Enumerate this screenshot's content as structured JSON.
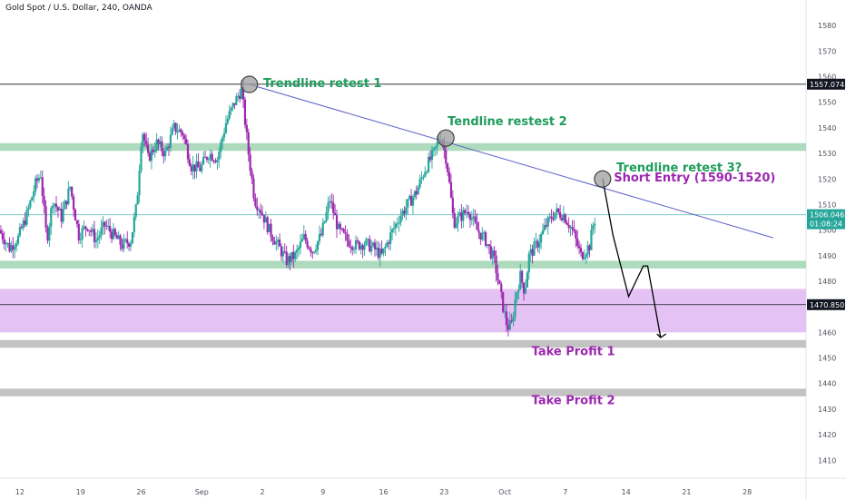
{
  "title": "Gold Spot / U.S. Dollar, 240, OANDA",
  "colors": {
    "up": "#26a69a",
    "down": "#9c27b0",
    "green_zone": "#a5d6b7",
    "purple_zone": "#e1b7f2",
    "gray_zone": "#bdbdbd",
    "trendline": "#5b5fc7",
    "green_text": "#1e9c5a",
    "purple_text": "#9c27b0",
    "price_tag": "#131722",
    "current_tag": "#26a69a"
  },
  "chart_data": {
    "type": "candlestick",
    "title": "Gold Spot / U.S. Dollar, 240, OANDA",
    "ylim": [
      1403,
      1590
    ],
    "y_ticks": [
      1410,
      1420,
      1430,
      1440,
      1450,
      1460,
      1470,
      1480,
      1490,
      1500,
      1510,
      1520,
      1530,
      1540,
      1550,
      1560,
      1570,
      1580
    ],
    "x_ticks": [
      "12",
      "19",
      "26",
      "Sep",
      "2",
      "9",
      "16",
      "23",
      "Oct",
      "7",
      "14",
      "21",
      "28"
    ],
    "x_ticks_day_index": [
      0,
      7,
      14,
      21,
      28,
      35,
      42,
      49,
      56,
      63,
      70,
      77,
      84
    ],
    "x_range_days": [
      -2.3,
      90.8
    ],
    "candle_anchors": [
      [
        -2.2,
        1500
      ],
      [
        -1,
        1493
      ],
      [
        0,
        1497
      ],
      [
        1,
        1506
      ],
      [
        2,
        1518
      ],
      [
        2.6,
        1522
      ],
      [
        3.3,
        1496
      ],
      [
        4,
        1512
      ],
      [
        5,
        1505
      ],
      [
        6,
        1517
      ],
      [
        7,
        1498
      ],
      [
        8,
        1502
      ],
      [
        9,
        1496
      ],
      [
        10,
        1502
      ],
      [
        11,
        1498
      ],
      [
        12,
        1494
      ],
      [
        13,
        1496
      ],
      [
        13.7,
        1510
      ],
      [
        14.3,
        1540
      ],
      [
        15,
        1528
      ],
      [
        16,
        1534
      ],
      [
        17,
        1530
      ],
      [
        18,
        1540
      ],
      [
        19,
        1538
      ],
      [
        20,
        1525
      ],
      [
        21,
        1524
      ],
      [
        22,
        1530
      ],
      [
        23,
        1528
      ],
      [
        24,
        1542
      ],
      [
        25,
        1550
      ],
      [
        25.8,
        1555
      ],
      [
        26.6,
        1530
      ],
      [
        27.3,
        1512
      ],
      [
        28,
        1508
      ],
      [
        29,
        1500
      ],
      [
        30,
        1494
      ],
      [
        31,
        1488
      ],
      [
        32,
        1490
      ],
      [
        33,
        1497
      ],
      [
        34,
        1492
      ],
      [
        35,
        1498
      ],
      [
        36,
        1512
      ],
      [
        37,
        1500
      ],
      [
        38,
        1496
      ],
      [
        39,
        1494
      ],
      [
        40,
        1495
      ],
      [
        41,
        1493
      ],
      [
        42,
        1490
      ],
      [
        43,
        1498
      ],
      [
        44,
        1505
      ],
      [
        45,
        1510
      ],
      [
        46,
        1515
      ],
      [
        47,
        1524
      ],
      [
        48,
        1530
      ],
      [
        48.8,
        1537
      ],
      [
        49.5,
        1527
      ],
      [
        50.3,
        1503
      ],
      [
        51,
        1505
      ],
      [
        52,
        1508
      ],
      [
        53,
        1500
      ],
      [
        54,
        1496
      ],
      [
        55,
        1488
      ],
      [
        56,
        1470
      ],
      [
        56.5,
        1462
      ],
      [
        57,
        1463
      ],
      [
        57.5,
        1475
      ],
      [
        58,
        1482
      ],
      [
        58.5,
        1476
      ],
      [
        59,
        1490
      ],
      [
        60,
        1495
      ],
      [
        61,
        1502
      ],
      [
        62,
        1507
      ],
      [
        63,
        1506
      ],
      [
        64,
        1500
      ],
      [
        65,
        1490
      ],
      [
        66,
        1494
      ],
      [
        66.5,
        1504
      ]
    ],
    "current_price": 1506.046,
    "countdown": "01:08:24",
    "zones": [
      {
        "low": 1531,
        "high": 1534,
        "color": "green"
      },
      {
        "low": 1485,
        "high": 1488,
        "color": "green"
      },
      {
        "low": 1460,
        "high": 1477,
        "color": "purple"
      },
      {
        "low": 1454,
        "high": 1457,
        "color": "gray"
      },
      {
        "low": 1435,
        "high": 1438,
        "color": "gray"
      }
    ],
    "horizontal_lines": [
      {
        "price": 1557.074,
        "label": "1557.074"
      },
      {
        "price": 1470.85,
        "label": "1470.850"
      }
    ],
    "trendline": {
      "start": [
        26.5,
        1557
      ],
      "end": [
        87,
        1497
      ]
    },
    "retest_circles": [
      [
        26.5,
        1557
      ],
      [
        49.2,
        1536
      ],
      [
        67.3,
        1520
      ]
    ],
    "projection_path": [
      [
        67.3,
        1520
      ],
      [
        68.5,
        1498
      ],
      [
        70.3,
        1474
      ],
      [
        72,
        1486
      ],
      [
        72.5,
        1486
      ],
      [
        74,
        1458
      ]
    ],
    "annotations": [
      {
        "text": "Trendline retest 1",
        "day": 28.1,
        "price": 1556,
        "color": "green"
      },
      {
        "text": "Tendline restest 2",
        "day": 49.4,
        "price": 1541,
        "color": "green"
      },
      {
        "text": "Trendline retest 3?",
        "day": 68.9,
        "price": 1523,
        "color": "green"
      },
      {
        "text": "Short Entry (1590-1520)",
        "day": 68.6,
        "price": 1519,
        "color": "purple"
      },
      {
        "text": "Take Profit 1",
        "day": 59.1,
        "price": 1451,
        "color": "purple"
      },
      {
        "text": "Take Profit 2",
        "day": 59.1,
        "price": 1432,
        "color": "purple"
      }
    ]
  }
}
